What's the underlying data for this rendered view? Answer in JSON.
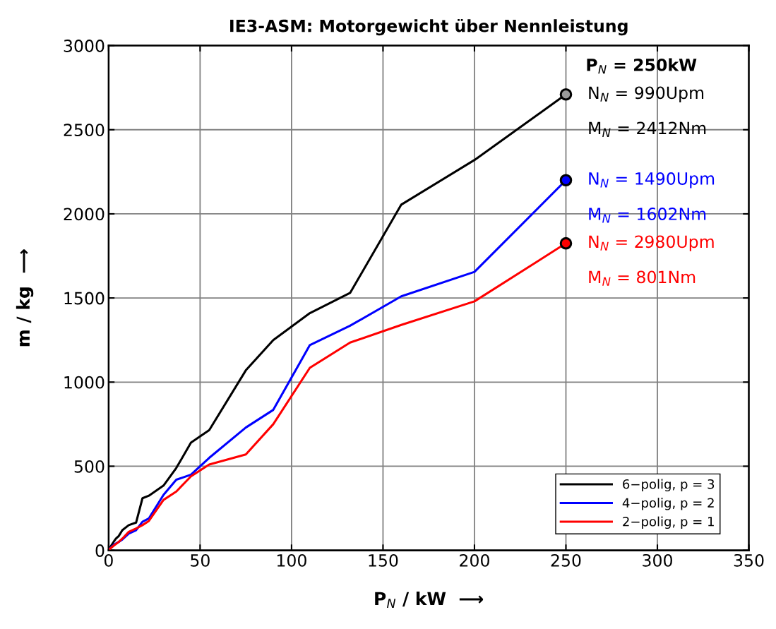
{
  "chart_data": {
    "type": "line",
    "title": "IE3-ASM: Motorgewicht über Nennleistung",
    "xlabel": "P$_{N}$ / kW  ⟶",
    "ylabel": "m / kg  ⟶",
    "xlim": [
      0,
      350
    ],
    "xticks": [
      0,
      50,
      100,
      150,
      200,
      250,
      300,
      350
    ],
    "ylim": [
      0,
      3000
    ],
    "yticks": [
      0,
      500,
      1000,
      1500,
      2000,
      2500,
      3000
    ],
    "grid": true,
    "legend": "bottom right",
    "line_style": "solid",
    "series": [
      {
        "name": "6−polig, p = 3",
        "color": "#000000",
        "x": [
          0.75,
          1.5,
          3,
          4,
          5.5,
          7.5,
          11,
          15,
          18.5,
          22,
          30,
          37,
          45,
          55,
          75,
          90,
          110,
          132,
          160,
          200,
          250
        ],
        "values": [
          15,
          30,
          55,
          70,
          85,
          120,
          150,
          165,
          310,
          325,
          385,
          490,
          640,
          715,
          1070,
          1250,
          1410,
          1530,
          2055,
          2320,
          2710
        ]
      },
      {
        "name": "4−polig, p = 2",
        "color": "#0000ff",
        "x": [
          0.75,
          3,
          5.5,
          7.5,
          11,
          15,
          18.5,
          22,
          30,
          37,
          45,
          55,
          75,
          90,
          110,
          132,
          160,
          200,
          250
        ],
        "values": [
          12,
          35,
          50,
          65,
          100,
          120,
          170,
          190,
          330,
          420,
          450,
          550,
          730,
          835,
          1220,
          1335,
          1510,
          1655,
          2200
        ]
      },
      {
        "name": "2−polig, p = 1",
        "color": "#ff0000",
        "x": [
          0.75,
          3,
          5.5,
          7.5,
          11,
          15,
          18.5,
          22,
          30,
          37,
          45,
          55,
          75,
          90,
          110,
          132,
          160,
          200,
          250
        ],
        "values": [
          10,
          30,
          50,
          70,
          110,
          130,
          150,
          175,
          300,
          350,
          440,
          510,
          570,
          750,
          1085,
          1235,
          1340,
          1480,
          1825
        ]
      },
      {
        "type": "scatter",
        "marker": "circle",
        "color": "#999999",
        "x": [
          250
        ],
        "values": [
          2710
        ]
      },
      {
        "type": "scatter",
        "marker": "circle",
        "color": "#0000ff",
        "x": [
          250
        ],
        "values": [
          2200
        ]
      },
      {
        "type": "scatter",
        "marker": "circle",
        "color": "#ff0000",
        "x": [
          250
        ],
        "values": [
          1825
        ]
      }
    ],
    "annotations": [
      "P$_{N}$ = 250kW",
      "N$_{N}$ = 990Upm",
      "M$_{N}$ = 2412Nm",
      "N$_{N}$ = 1490Upm",
      "M$_{N}$ = 1602Nm",
      "N$_{N}$ = 2980Upm",
      "M$_{N}$ = 801Nm"
    ]
  }
}
